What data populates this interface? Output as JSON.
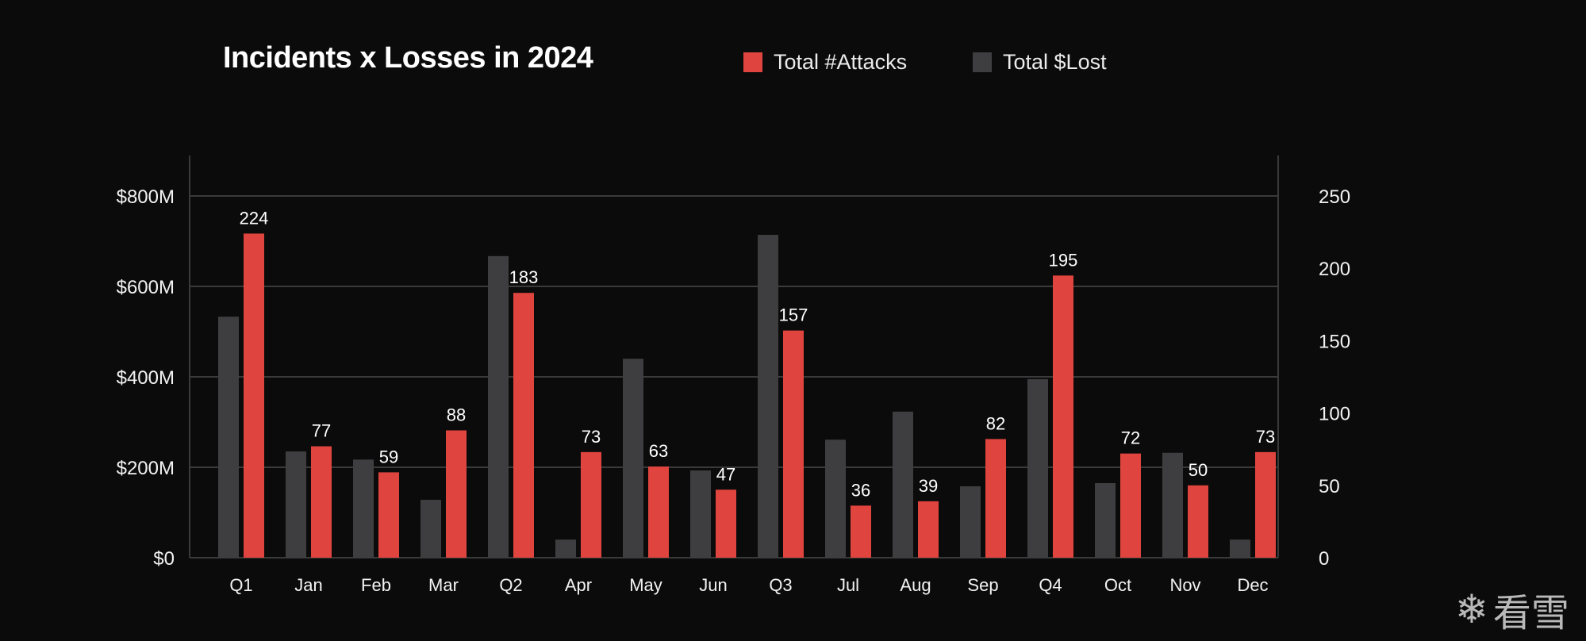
{
  "header": {
    "title": "Incidents x Losses in 2024",
    "legend": [
      {
        "label": "Total #Attacks",
        "color": "#e0443e"
      },
      {
        "label": "Total $Lost",
        "color": "#3e3e40"
      }
    ]
  },
  "watermark": {
    "icon": "snowflake-icon",
    "text": "看雪"
  },
  "chart_data": {
    "type": "bar",
    "title": "Incidents x Losses in 2024",
    "xlabel": "",
    "categories": [
      "Q1",
      "Jan",
      "Feb",
      "Mar",
      "Q2",
      "Apr",
      "May",
      "Jun",
      "Q3",
      "Jul",
      "Aug",
      "Sep",
      "Q4",
      "Oct",
      "Nov",
      "Dec"
    ],
    "series": [
      {
        "name": "Total $Lost",
        "axis": "left",
        "unit": "$M",
        "color": "#3e3e40",
        "values": [
          533,
          235,
          217,
          128,
          667,
          40,
          440,
          193,
          714,
          261,
          323,
          158,
          395,
          165,
          232,
          40
        ]
      },
      {
        "name": "Total #Attacks",
        "axis": "right",
        "color": "#e0443e",
        "values": [
          224,
          77,
          59,
          88,
          183,
          73,
          63,
          47,
          157,
          36,
          39,
          82,
          195,
          72,
          50,
          73
        ],
        "data_labels": [
          "224",
          "77",
          "59",
          "88",
          "183",
          "73",
          "63",
          "47",
          "157",
          "36",
          "39",
          "82",
          "195",
          "72",
          "50",
          "73"
        ]
      }
    ],
    "y_left": {
      "ylim": [
        0,
        800
      ],
      "ticks": [
        0,
        200,
        400,
        600,
        800
      ],
      "tick_labels": [
        "$0",
        "$200M",
        "$400M",
        "$600M",
        "$800M"
      ]
    },
    "y_right": {
      "ylim": [
        0,
        250
      ],
      "ticks": [
        0,
        50,
        100,
        150,
        200,
        250
      ],
      "tick_labels": [
        "0",
        "50",
        "100",
        "150",
        "200",
        "250"
      ]
    },
    "grid": "horizontal (left axis ticks)",
    "legend_position": "top-right"
  }
}
